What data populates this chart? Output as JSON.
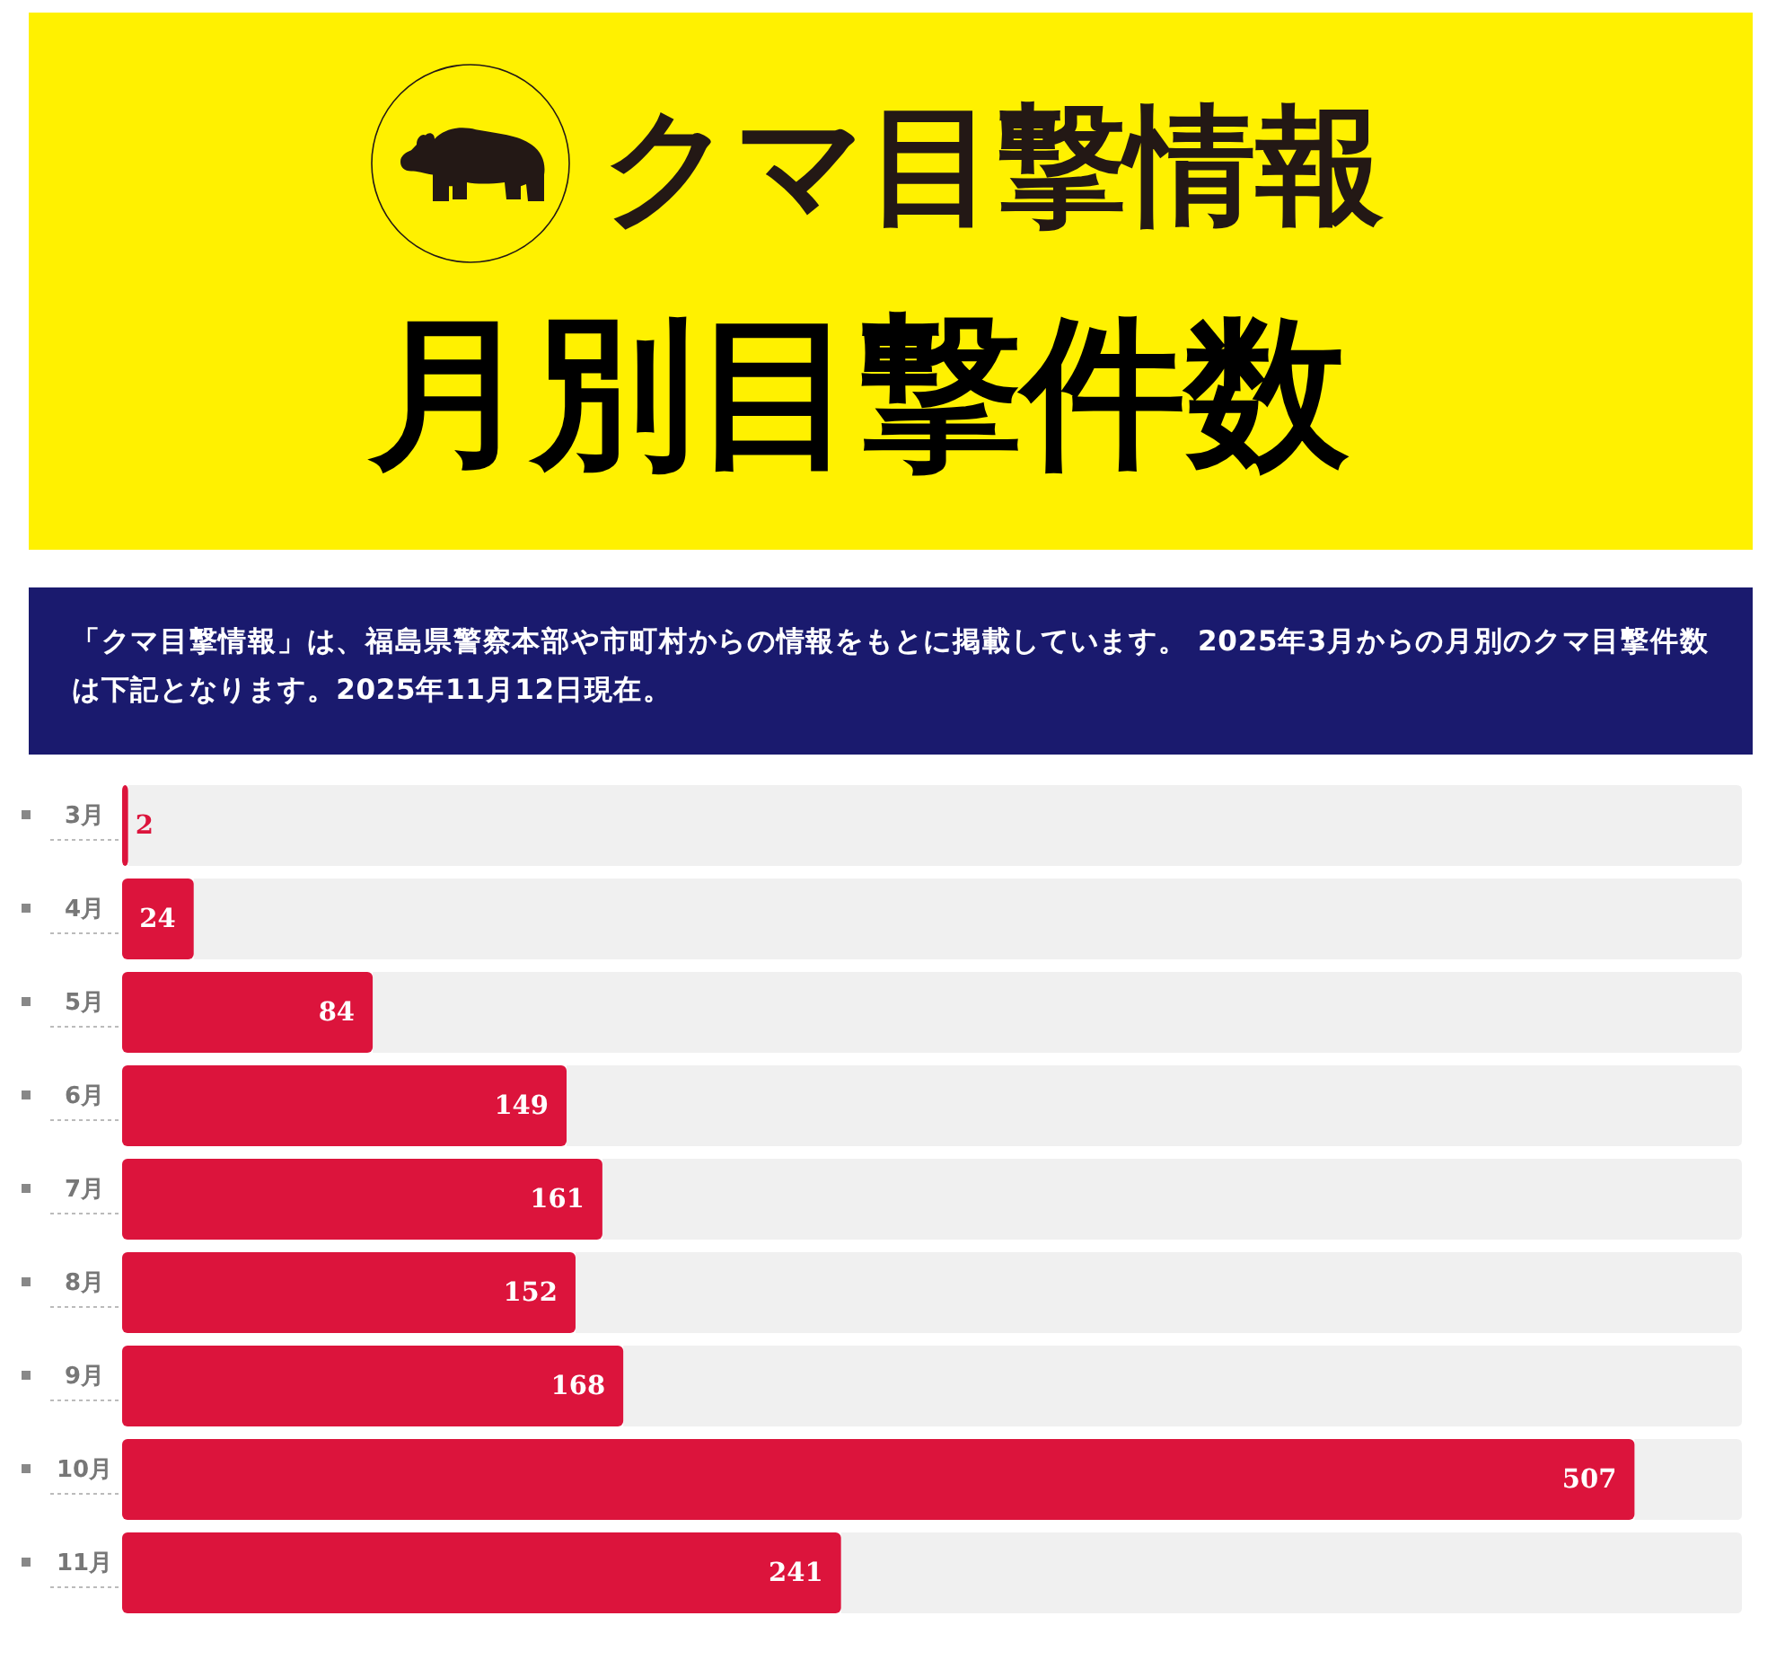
{
  "chart_data": {
    "type": "bar",
    "orientation": "horizontal",
    "title": "クマ目撃情報",
    "subtitle": "月別目撃件数",
    "annotations": [
      "「クマ目撃情報」は、福島県警察本部や市町村からの情報をもとに掲載しています。 2025年3月からの月別のクマ目撃件数は下記となります。2025年11月12日現在。"
    ],
    "categories": [
      "3月",
      "4月",
      "5月",
      "6月",
      "7月",
      "8月",
      "9月",
      "10月",
      "11月"
    ],
    "values": [
      2,
      24,
      84,
      149,
      161,
      152,
      168,
      507,
      241
    ],
    "color": "#dc143c",
    "xlim": [
      0,
      543
    ],
    "data_labels": true
  }
}
